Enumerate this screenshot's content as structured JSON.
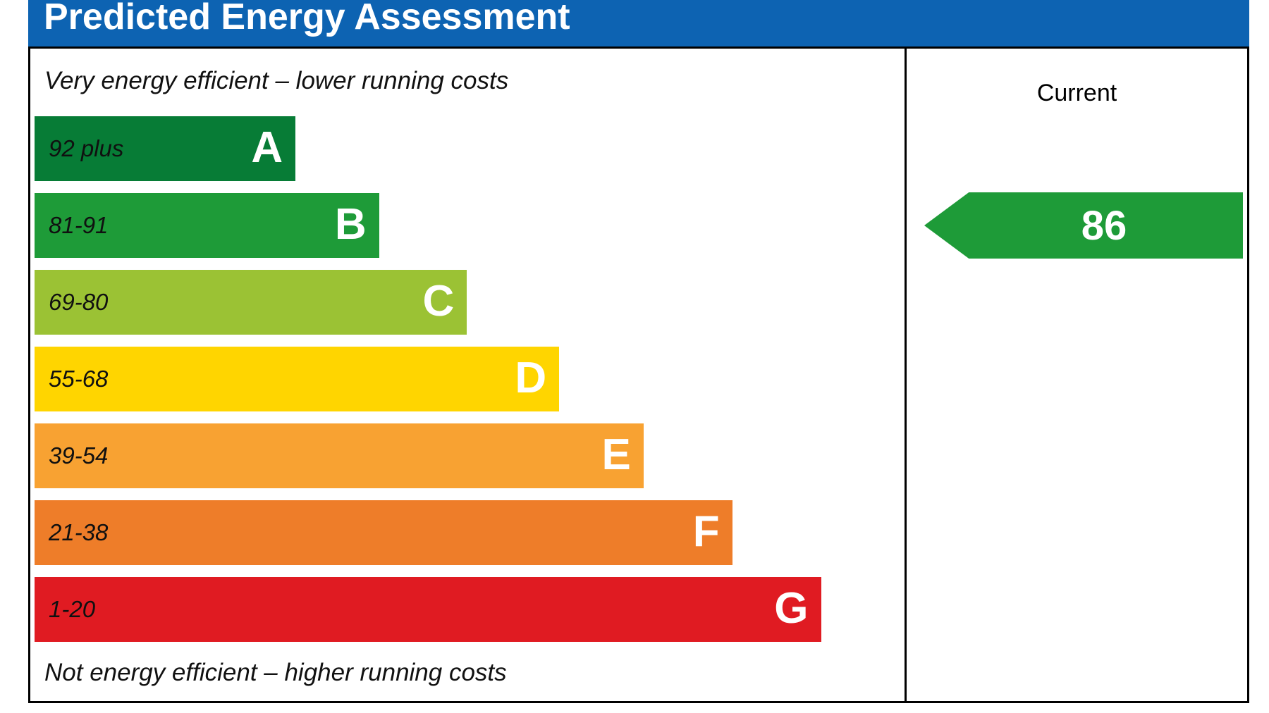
{
  "title": "Predicted Energy Assessment",
  "captions": {
    "top": "Very energy efficient – lower running costs",
    "bottom": "Not energy efficient – higher running costs"
  },
  "current": {
    "label": "Current",
    "value": "86",
    "band": "B"
  },
  "bands": [
    {
      "letter": "A",
      "range": "92 plus",
      "color": "#077c36",
      "width_pct": 30.0
    },
    {
      "letter": "B",
      "range": "81-91",
      "color": "#1e9b38",
      "width_pct": 39.6
    },
    {
      "letter": "C",
      "range": "69-80",
      "color": "#9bc234",
      "width_pct": 49.7
    },
    {
      "letter": "D",
      "range": "55-68",
      "color": "#ffd500",
      "width_pct": 60.3
    },
    {
      "letter": "E",
      "range": "39-54",
      "color": "#f8a232",
      "width_pct": 70.0
    },
    {
      "letter": "F",
      "range": "21-38",
      "color": "#ee7d29",
      "width_pct": 80.2
    },
    {
      "letter": "G",
      "range": "1-20",
      "color": "#e01b22",
      "width_pct": 90.4
    }
  ],
  "colors": {
    "header_bg": "#0d63b2",
    "arrow": "#1e9b38",
    "border": "#000000"
  },
  "chart_data": {
    "type": "bar",
    "title": "Predicted Energy Assessment",
    "categories": [
      "A",
      "B",
      "C",
      "D",
      "E",
      "F",
      "G"
    ],
    "tick_labels": [
      "92 plus",
      "81-91",
      "69-80",
      "55-68",
      "39-54",
      "21-38",
      "1-20"
    ],
    "values": [
      30.0,
      39.6,
      49.7,
      60.3,
      70.0,
      80.2,
      90.4
    ],
    "bar_colors": [
      "#077c36",
      "#1e9b38",
      "#9bc234",
      "#ffd500",
      "#f8a232",
      "#ee7d29",
      "#e01b22"
    ],
    "current_rating": 86,
    "current_band": "B",
    "xlabel": "",
    "ylabel": "",
    "annotations": [
      "Very energy efficient – lower running costs",
      "Not energy efficient – higher running costs",
      "Current"
    ],
    "legend_position": "none",
    "grid": false
  }
}
